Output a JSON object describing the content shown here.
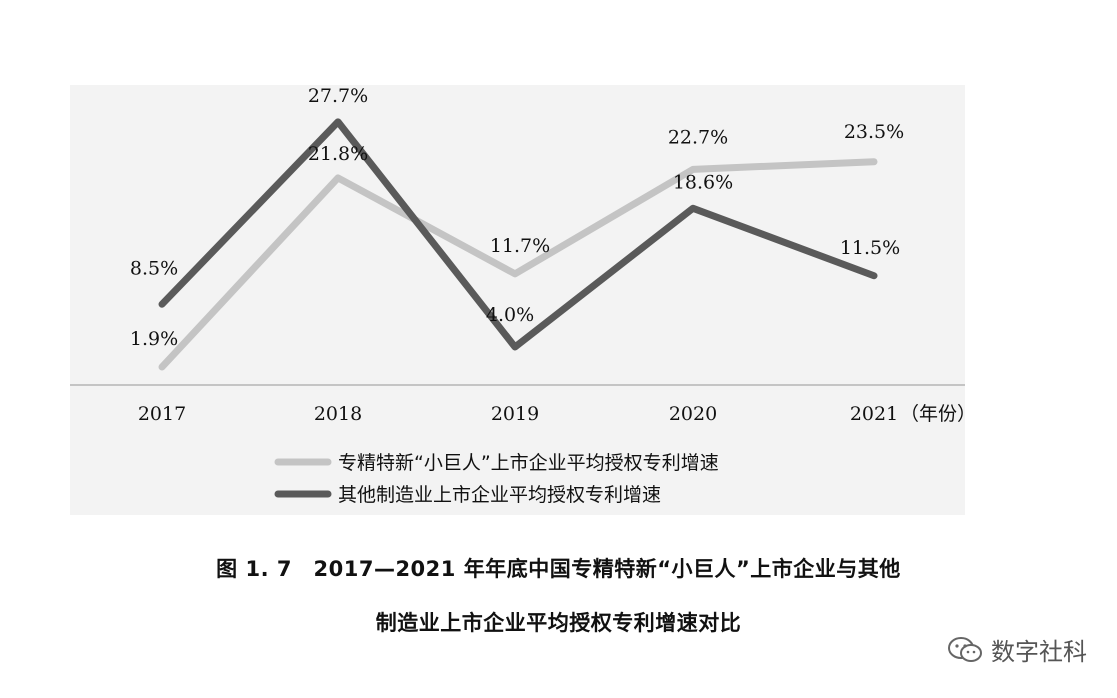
{
  "chart_data": {
    "type": "line",
    "categories": [
      "2017",
      "2018",
      "2019",
      "2020",
      "2021"
    ],
    "x_unit_label": "（年份）",
    "ylim": [
      0,
      30
    ],
    "grid": false,
    "legend_position": "bottom",
    "series": [
      {
        "name": "专精特新“小巨人”上市企业平均授权专利增速",
        "color": "#c4c4c4",
        "values": [
          1.9,
          21.8,
          11.7,
          22.7,
          23.5
        ],
        "labels": [
          "1.9%",
          "21.8%",
          "11.7%",
          "22.7%",
          "23.5%"
        ]
      },
      {
        "name": "其他制造业上市企业平均授权专利增速",
        "color": "#5a5a5a",
        "values": [
          8.5,
          27.7,
          4.0,
          18.6,
          11.5
        ],
        "labels": [
          "8.5%",
          "27.7%",
          "4.0%",
          "18.6%",
          "11.5%"
        ]
      }
    ]
  },
  "caption": {
    "line1": "图 1. 7　2017—2021 年年底中国专精特新“小巨人”上市企业与其他",
    "line2": "制造业上市企业平均授权专利增速对比"
  },
  "watermark": {
    "text": "数字社科"
  }
}
